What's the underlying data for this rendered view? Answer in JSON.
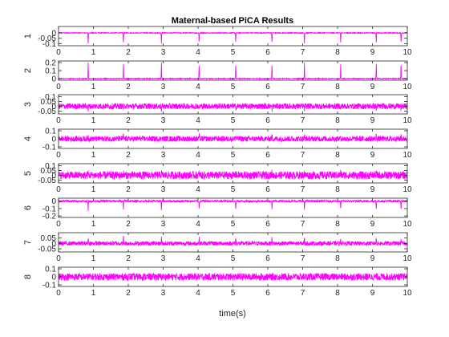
{
  "chart_data": {
    "type": "line",
    "title": "Maternal-based PiCA Results",
    "xlabel": "time(s)",
    "xlim": [
      0,
      10
    ],
    "xticks": [
      "0",
      "1",
      "2",
      "3",
      "4",
      "5",
      "6",
      "7",
      "8",
      "9",
      "10"
    ],
    "line_color": "#ff00ff",
    "grid": false,
    "beat_times": [
      0.85,
      1.86,
      2.95,
      4.03,
      5.08,
      6.12,
      7.05,
      8.09,
      9.11,
      9.82
    ],
    "panels": [
      {
        "ylabel": "1",
        "ylim": [
          -0.12,
          0.06
        ],
        "yticks": [
          0,
          -0.05,
          -0.1
        ],
        "ytick_labels": [
          "0",
          "-0.05",
          "-0.1"
        ],
        "baseline": 0.0,
        "spike_amplitude": -0.1,
        "noise_amplitude": 0.004
      },
      {
        "ylabel": "2",
        "ylim": [
          -0.02,
          0.22
        ],
        "yticks": [
          0.2,
          0.1,
          0
        ],
        "ytick_labels": [
          "0.2",
          "0.1",
          "0"
        ],
        "baseline": 0.0,
        "spike_amplitude": 0.2,
        "noise_amplitude": 0.005
      },
      {
        "ylabel": "3",
        "ylim": [
          -0.08,
          0.12
        ],
        "yticks": [
          0.1,
          0.05,
          0,
          -0.05
        ],
        "ytick_labels": [
          "0.1",
          "0.05",
          "0",
          "-0.05"
        ],
        "baseline": 0.0,
        "spike_amplitude": -0.04,
        "noise_amplitude": 0.03
      },
      {
        "ylabel": "4",
        "ylim": [
          -0.12,
          0.12
        ],
        "yticks": [
          0.1,
          0,
          -0.1
        ],
        "ytick_labels": [
          "0.1",
          "0",
          "-0.1"
        ],
        "baseline": 0.0,
        "spike_amplitude": 0.05,
        "noise_amplitude": 0.035
      },
      {
        "ylabel": "5",
        "ylim": [
          -0.08,
          0.12
        ],
        "yticks": [
          0.1,
          0.05,
          0,
          -0.05
        ],
        "ytick_labels": [
          "0.1",
          "0.05",
          "0",
          "-0.05"
        ],
        "baseline": 0.0,
        "spike_amplitude": 0.03,
        "noise_amplitude": 0.04
      },
      {
        "ylabel": "6",
        "ylim": [
          -0.22,
          0.04
        ],
        "yticks": [
          0,
          -0.1,
          -0.2
        ],
        "ytick_labels": [
          "0",
          "-0.1",
          "-0.2"
        ],
        "baseline": 0.0,
        "spike_amplitude": -0.12,
        "noise_amplitude": 0.015
      },
      {
        "ylabel": "7",
        "ylim": [
          -0.08,
          0.1
        ],
        "yticks": [
          0.05,
          0,
          -0.05
        ],
        "ytick_labels": [
          "0.05",
          "0",
          "-0.05"
        ],
        "baseline": 0.0,
        "spike_amplitude": 0.06,
        "noise_amplitude": 0.02
      },
      {
        "ylabel": "8",
        "ylim": [
          -0.12,
          0.12
        ],
        "yticks": [
          0.1,
          0,
          -0.1
        ],
        "ytick_labels": [
          "0.1",
          "0",
          "-0.1"
        ],
        "baseline": 0.0,
        "spike_amplitude": 0.0,
        "noise_amplitude": 0.045
      }
    ]
  }
}
